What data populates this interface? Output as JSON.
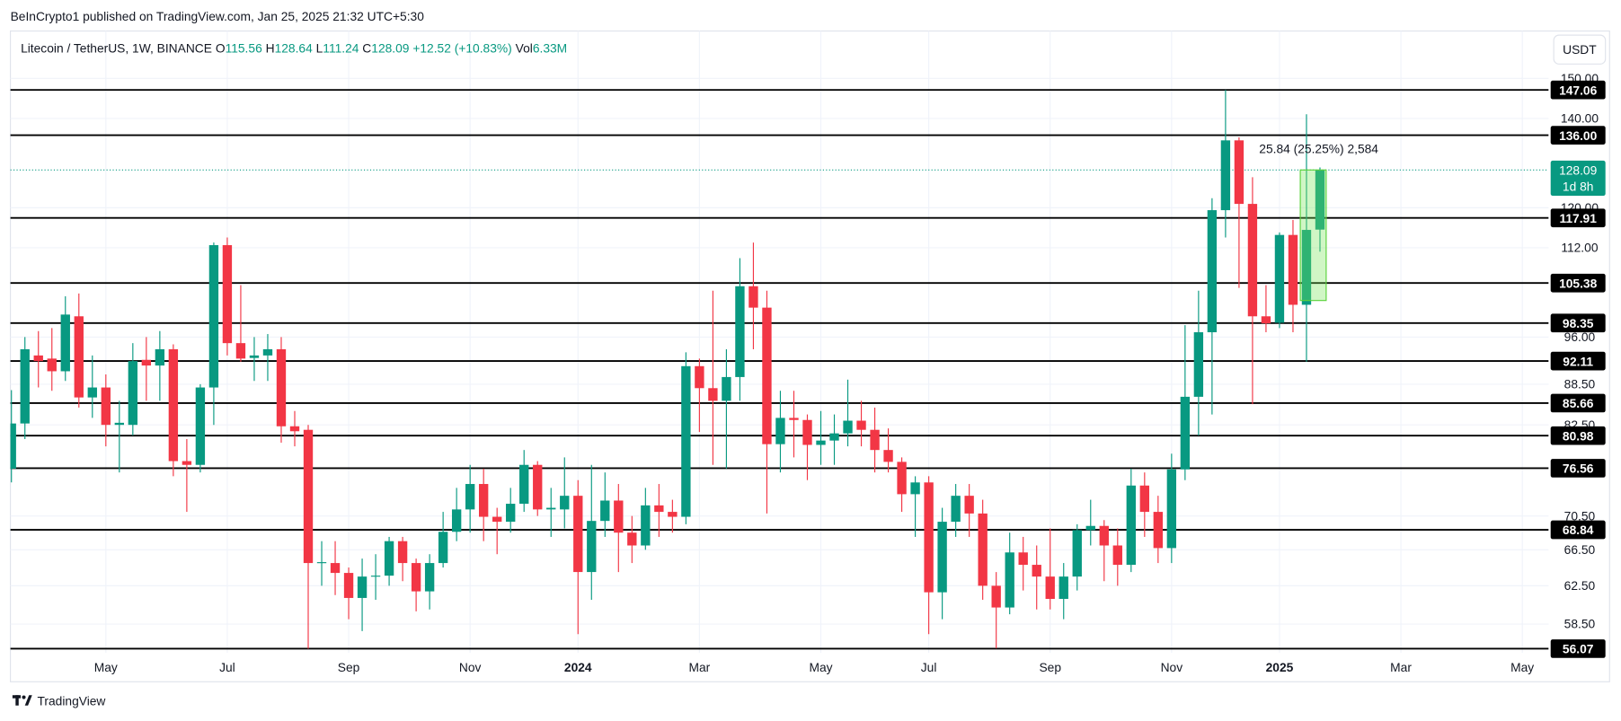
{
  "header": {
    "published": "BeInCrypto1 published on TradingView.com, Jan 25, 2025 21:32 UTC+5:30",
    "symbol": "Litecoin / TetherUS, 1W, BINANCE",
    "o": "O",
    "h": "H",
    "l": "L",
    "c": "C",
    "change": "+12.52 (+10.83%)",
    "vol_label": "Vol",
    "volume": "6.33M",
    "currency": "USDT",
    "brand": "TradingView"
  },
  "chart_data": {
    "type": "candlestick",
    "log": true,
    "grid": true,
    "up_color": "#089981",
    "down_color": "#f23645",
    "level_color": "#000000",
    "ylim": [
      55.67,
      162.8
    ],
    "yticks": [
      {
        "value": 150,
        "label": "150.00"
      },
      {
        "value": 140,
        "label": "140.00"
      },
      {
        "value": 120,
        "label": "120.00"
      },
      {
        "value": 112,
        "label": "112.00"
      },
      {
        "value": 96,
        "label": "96.00"
      },
      {
        "value": 88.5,
        "label": "88.50"
      },
      {
        "value": 82.5,
        "label": "82.50"
      },
      {
        "value": 70.5,
        "label": "70.50"
      },
      {
        "value": 66.5,
        "label": "66.50"
      },
      {
        "value": 62.5,
        "label": "62.50"
      },
      {
        "value": 58.5,
        "label": "58.50"
      }
    ],
    "levels": [
      147.06,
      {
        "value": 136,
        "label": "136.00"
      },
      117.91,
      105.38,
      98.35,
      92.11,
      85.66,
      80.98,
      76.56,
      68.84,
      56.07
    ],
    "countdown": "1d 8h",
    "measure": {
      "label": "25.84 (25.25%) 2,584",
      "from": 102.25,
      "to": 128.09
    },
    "categories": [
      null,
      null,
      null,
      null,
      null,
      null,
      null,
      "May",
      null,
      null,
      null,
      null,
      null,
      null,
      null,
      null,
      "Jul",
      null,
      null,
      null,
      null,
      null,
      null,
      null,
      null,
      "Sep",
      null,
      null,
      null,
      null,
      null,
      null,
      null,
      null,
      "Nov",
      null,
      null,
      null,
      null,
      null,
      null,
      null,
      "2024",
      null,
      null,
      null,
      null,
      null,
      null,
      null,
      null,
      "Mar",
      null,
      null,
      null,
      null,
      null,
      null,
      null,
      null,
      "May",
      null,
      null,
      null,
      null,
      null,
      null,
      null,
      "Jul",
      null,
      null,
      null,
      null,
      null,
      null,
      null,
      null,
      "Sep",
      null,
      null,
      null,
      null,
      null,
      null,
      null,
      null,
      "Nov",
      null,
      null,
      null,
      null,
      null,
      null,
      null,
      "2025",
      null,
      null,
      null,
      null,
      null,
      null,
      null,
      null,
      "Mar",
      null,
      null,
      null,
      null,
      null,
      null,
      null,
      null,
      "May"
    ],
    "open": [
      76.5,
      82.7,
      93,
      92.5,
      90.5,
      99.5,
      86.5,
      88,
      82.5,
      82.5,
      92.3,
      91.4,
      94,
      77.5,
      77,
      88,
      112.5,
      95,
      92.6,
      93,
      94,
      82.3,
      81.8,
      65,
      65,
      63.9,
      61.2,
      63.5,
      63.6,
      67.5,
      65,
      61.9,
      65,
      68.6,
      71.3,
      74.5,
      70.4,
      69.8,
      72,
      77,
      71.3,
      71.3,
      73,
      64,
      69.9,
      72.4,
      68.5,
      67,
      71.8,
      71,
      70.4,
      91.3,
      87.9,
      86,
      89.6,
      104.8,
      101,
      79.8,
      83.5,
      83.2,
      79.7,
      80.3,
      81.3,
      83.1,
      81.8,
      79,
      77.4,
      73.2,
      74.7,
      61.8,
      69.8,
      73,
      70.8,
      62.5,
      60.2,
      66.2,
      64.8,
      63.5,
      61.1,
      63.5,
      68.8,
      69.3,
      67,
      64.8,
      74.3,
      71,
      66.7,
      76.4,
      86.6,
      96.8,
      119.5,
      134.8,
      120.8,
      99.5,
      98.4,
      114.5,
      101.5,
      115.56,
      null,
      null,
      null,
      null,
      null,
      null,
      null,
      null,
      null,
      null,
      null,
      null,
      null,
      null,
      null
    ],
    "high": [
      87.6,
      96,
      97,
      97.5,
      103,
      103.5,
      93,
      90,
      86,
      95,
      96,
      97,
      94.8,
      80.5,
      88.5,
      113,
      114,
      105,
      96,
      96.5,
      96,
      84.5,
      82.5,
      67.5,
      67.5,
      64.5,
      65.5,
      66,
      68,
      68,
      65.5,
      66,
      71,
      74,
      77,
      76.5,
      71.5,
      74,
      79,
      77.5,
      74,
      78,
      75,
      77,
      76,
      74.5,
      70.5,
      74,
      74.5,
      72.5,
      93.5,
      92.5,
      104,
      94,
      110,
      113,
      104,
      87.5,
      87.5,
      84,
      84.5,
      84,
      89.2,
      86,
      85,
      82,
      78,
      75.5,
      75.5,
      71.5,
      74.5,
      74.5,
      72.5,
      64,
      68.5,
      68,
      67,
      69,
      65,
      69.5,
      72.5,
      70,
      69,
      76.5,
      76,
      73,
      78.5,
      98,
      104,
      122,
      147.06,
      135.5,
      126.5,
      105,
      115,
      117.5,
      141,
      128.64,
      null,
      null,
      null,
      null,
      null,
      null,
      null,
      null,
      null,
      null,
      null,
      null,
      null,
      null,
      null
    ],
    "low": [
      74.7,
      80.5,
      88,
      87.5,
      89,
      85,
      83.5,
      79.5,
      76,
      81,
      86,
      86,
      75.5,
      71,
      76,
      82.5,
      93,
      92,
      89,
      89,
      80,
      79.5,
      56.07,
      62.5,
      61.5,
      59,
      57.8,
      61,
      62.5,
      63,
      59.8,
      60,
      64.5,
      67.5,
      68.5,
      67.5,
      66,
      68.5,
      71,
      70.5,
      68,
      69,
      57.5,
      61,
      68,
      64,
      65,
      66.5,
      68,
      68.5,
      69.5,
      81.5,
      77,
      76.5,
      86,
      94,
      70.8,
      76,
      78,
      75,
      77,
      77,
      79.5,
      79.5,
      76,
      76,
      71,
      68,
      57.5,
      59,
      68,
      68,
      61,
      56.1,
      59.5,
      62,
      60,
      60,
      59,
      62,
      67,
      63,
      62.5,
      64,
      68,
      65,
      65,
      75,
      81,
      84,
      114,
      104.5,
      85.5,
      96.8,
      97.5,
      96.8,
      92,
      111.24,
      null,
      null,
      null,
      null,
      null,
      null,
      null,
      null,
      null,
      null,
      null,
      null,
      null,
      null,
      null
    ],
    "close": [
      82.7,
      94,
      92.1,
      90.5,
      99.8,
      86.5,
      88,
      82.5,
      82.8,
      92.1,
      91.4,
      94,
      77.5,
      77,
      88,
      112.5,
      95,
      92.5,
      93,
      94,
      82.3,
      81.6,
      65,
      65.1,
      63.9,
      61.2,
      63.5,
      63.6,
      67.5,
      65,
      61.9,
      65,
      68.6,
      71.3,
      74.5,
      70.4,
      69.8,
      72,
      77,
      71.3,
      71.5,
      73,
      64,
      69.9,
      72.4,
      68.5,
      67,
      71.8,
      71,
      70.4,
      91.3,
      87.9,
      86,
      89.6,
      104.8,
      101,
      79.8,
      83.5,
      83.2,
      79.7,
      80.3,
      81.3,
      83.1,
      81.8,
      79,
      77.4,
      73.2,
      74.7,
      61.8,
      69.8,
      73,
      70.8,
      62.5,
      60.2,
      66.2,
      64.8,
      63.5,
      61.1,
      63.5,
      68.8,
      69.3,
      67,
      64.8,
      74.3,
      71,
      66.7,
      76.4,
      86.6,
      96.8,
      119.5,
      134.8,
      120.8,
      99.5,
      98.3,
      114.5,
      101.5,
      115.5,
      128.09,
      null,
      null,
      null,
      null,
      null,
      null,
      null,
      null,
      null,
      null,
      null,
      null,
      null,
      null,
      null
    ]
  }
}
